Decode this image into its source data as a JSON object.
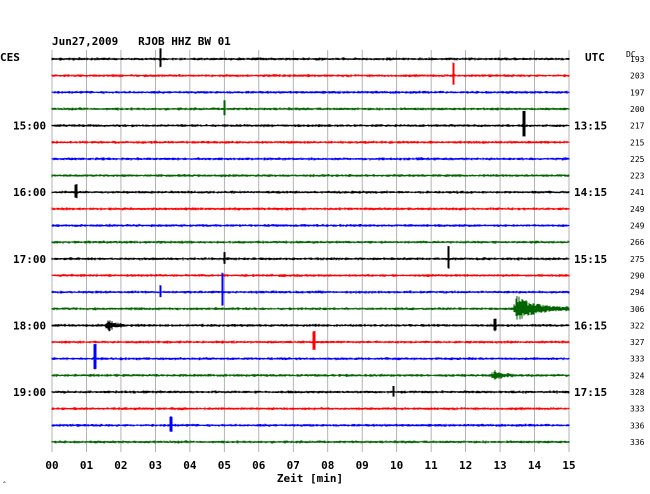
{
  "chart_data": {
    "type": "line",
    "title": "Jun27,2009   RJOB HHZ BW 01",
    "left_zone": "CES",
    "right_zone": "UTC",
    "dc_label": "DC",
    "xlabel": "Zeit [min]",
    "x_ticks": [
      "00",
      "01",
      "02",
      "03",
      "04",
      "05",
      "06",
      "07",
      "08",
      "09",
      "10",
      "11",
      "12",
      "13",
      "14",
      "15"
    ],
    "xlim": [
      0,
      15
    ],
    "left_time_labels": [
      {
        "row": 4,
        "text": "15:00"
      },
      {
        "row": 8,
        "text": "16:00"
      },
      {
        "row": 12,
        "text": "17:00"
      },
      {
        "row": 16,
        "text": "18:00"
      },
      {
        "row": 20,
        "text": "19:00"
      }
    ],
    "right_time_labels": [
      {
        "row": 0,
        "text": ""
      },
      {
        "row": 4,
        "text": "13:15"
      },
      {
        "row": 8,
        "text": "14:15"
      },
      {
        "row": 12,
        "text": "15:15"
      },
      {
        "row": 16,
        "text": "16:15"
      },
      {
        "row": 20,
        "text": "17:15"
      }
    ],
    "dc_values": [
      "193",
      "203",
      "197",
      "200",
      "217",
      "215",
      "225",
      "223",
      "241",
      "249",
      "249",
      "266",
      "275",
      "290",
      "294",
      "306",
      "322",
      "327",
      "333",
      "324",
      "328",
      "333",
      "336",
      "336"
    ],
    "row_colors": [
      "#000000",
      "#ff0000",
      "#0000ff",
      "#006400"
    ],
    "series": [
      {
        "row": 0,
        "events": [
          {
            "t": 3.15,
            "amp": 10
          }
        ]
      },
      {
        "row": 1,
        "events": [
          {
            "t": 11.65,
            "amp": 12
          }
        ]
      },
      {
        "row": 2,
        "events": []
      },
      {
        "row": 3,
        "events": [
          {
            "t": 5.0,
            "amp": 8
          }
        ]
      },
      {
        "row": 4,
        "events": [
          {
            "t": 13.7,
            "amp": 14
          }
        ]
      },
      {
        "row": 5,
        "events": []
      },
      {
        "row": 6,
        "events": []
      },
      {
        "row": 7,
        "events": []
      },
      {
        "row": 8,
        "events": [
          {
            "t": 0.7,
            "amp": 7
          }
        ]
      },
      {
        "row": 9,
        "events": []
      },
      {
        "row": 10,
        "events": []
      },
      {
        "row": 11,
        "events": []
      },
      {
        "row": 12,
        "events": [
          {
            "t": 5.0,
            "amp": 6
          },
          {
            "t": 11.5,
            "amp": 12
          }
        ]
      },
      {
        "row": 13,
        "events": []
      },
      {
        "row": 14,
        "events": [
          {
            "t": 3.15,
            "amp": 6
          },
          {
            "t": 4.95,
            "amp": 18
          }
        ]
      },
      {
        "row": 15,
        "events": [
          {
            "t": 13.45,
            "amp": 13,
            "coda": 1.6
          }
        ]
      },
      {
        "row": 16,
        "events": [
          {
            "t": 1.6,
            "amp": 7,
            "coda": 0.5
          },
          {
            "t": 12.85,
            "amp": 6
          }
        ]
      },
      {
        "row": 17,
        "events": [
          {
            "t": 7.6,
            "amp": 10
          }
        ]
      },
      {
        "row": 18,
        "events": [
          {
            "t": 1.25,
            "amp": 14
          }
        ]
      },
      {
        "row": 19,
        "events": [
          {
            "t": 12.8,
            "amp": 6,
            "coda": 0.6
          }
        ]
      },
      {
        "row": 20,
        "events": [
          {
            "t": 9.9,
            "amp": 5
          }
        ]
      },
      {
        "row": 21,
        "events": []
      },
      {
        "row": 22,
        "events": [
          {
            "t": 3.45,
            "amp": 8
          }
        ]
      },
      {
        "row": 23,
        "events": []
      }
    ],
    "footer_mark": "ˆ"
  }
}
